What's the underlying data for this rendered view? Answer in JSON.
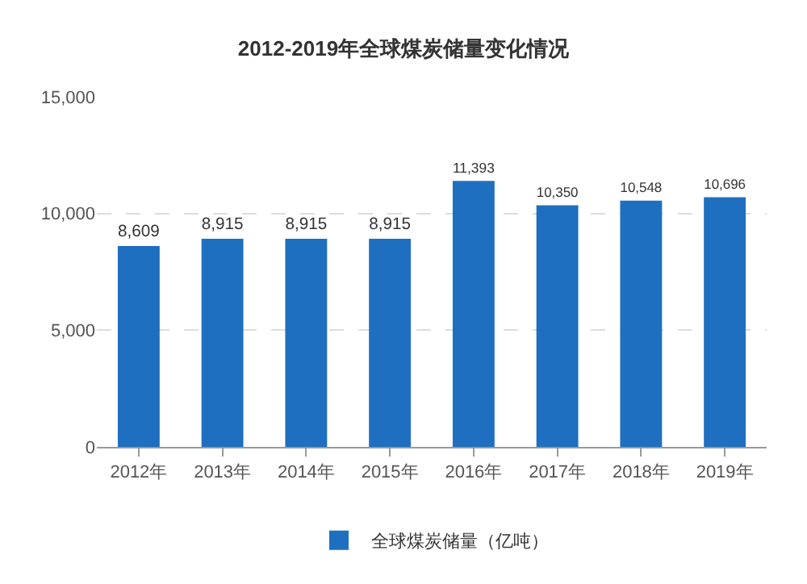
{
  "chart_data": {
    "type": "bar",
    "title": "2012-2019年全球煤炭储量变化情况",
    "categories": [
      "2012年",
      "2013年",
      "2014年",
      "2015年",
      "2016年",
      "2017年",
      "2018年",
      "2019年"
    ],
    "series": [
      {
        "name": "全球煤炭储量（亿吨）",
        "color": "#1f6fc0",
        "values": [
          8609,
          8915,
          8915,
          8915,
          11393,
          10350,
          10548,
          10696
        ],
        "value_labels": [
          "8,609",
          "8,915",
          "8,915",
          "8,915",
          "11,393",
          "10,350",
          "10,548",
          "10,696"
        ]
      }
    ],
    "ylim": [
      0,
      15000
    ],
    "yticks": [
      {
        "value": 0,
        "label": "0"
      },
      {
        "value": 5000,
        "label": "5,000"
      },
      {
        "value": 10000,
        "label": "10,000"
      },
      {
        "value": 15000,
        "label": "15,000"
      }
    ],
    "grid": "y",
    "legend": "bottom"
  }
}
